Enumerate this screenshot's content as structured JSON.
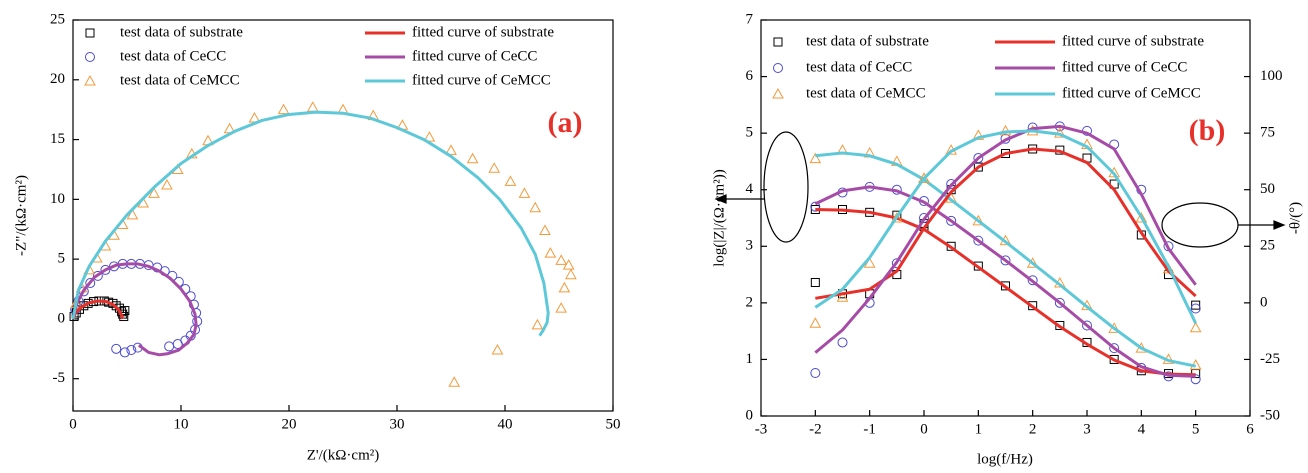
{
  "chart_data": [
    {
      "type": "scatter",
      "annotation": "(a)",
      "x_label": "Z'/(kΩ·cm²)",
      "y_label": "-Z\"/(kΩ·cm²)",
      "xlim": [
        0,
        50
      ],
      "xticks": [
        0,
        10,
        20,
        30,
        40,
        50
      ],
      "ylim": [
        -7.7,
        25
      ],
      "yticks": [
        -5,
        0,
        5,
        10,
        15,
        20,
        25
      ],
      "series": [
        {
          "name": "test data of substrate",
          "color": "#000000",
          "marker": "square",
          "x": [
            0.1,
            0.3,
            0.6,
            1.0,
            1.4,
            1.9,
            2.4,
            2.9,
            3.3,
            3.7,
            4.0,
            4.3,
            4.5,
            4.6,
            4.7,
            4.8
          ],
          "values": [
            0.2,
            0.5,
            0.8,
            1.1,
            1.3,
            1.45,
            1.5,
            1.5,
            1.4,
            1.3,
            1.1,
            0.9,
            0.6,
            0.4,
            0.2,
            0.7
          ]
        },
        {
          "name": "test data of CeCC",
          "color": "#4b4bd1",
          "marker": "circle",
          "x": [
            0.2,
            0.5,
            1,
            1.6,
            2.3,
            3,
            3.8,
            4.6,
            5.4,
            6.2,
            7,
            7.8,
            8.5,
            9.2,
            9.8,
            10.4,
            10.9,
            11.2,
            11.4,
            11.5,
            11.3,
            10.9,
            10.4,
            9.7,
            8.9,
            6.0,
            5.4,
            4.8,
            4.0
          ],
          "values": [
            0.8,
            1.5,
            2.3,
            3,
            3.6,
            4.1,
            4.4,
            4.6,
            4.6,
            4.6,
            4.5,
            4.3,
            4.0,
            3.6,
            3.1,
            2.5,
            1.9,
            1.2,
            0.5,
            -0.2,
            -0.9,
            -1.4,
            -1.8,
            -2.1,
            -2.3,
            -2.4,
            -2.6,
            -2.8,
            -2.5
          ]
        },
        {
          "name": "test data of CeMCC",
          "color": "#f39a3c",
          "marker": "triangle",
          "x": [
            0.3,
            0.8,
            1.5,
            2.2,
            3,
            3.8,
            4.6,
            5.5,
            6.5,
            7.5,
            8.7,
            9.7,
            11,
            12.5,
            14.5,
            16.8,
            19.5,
            22.2,
            25,
            27.8,
            30.5,
            33,
            35,
            37,
            39,
            40.5,
            41.8,
            42.8,
            43.7,
            44.2,
            45.2,
            45.9,
            46.1,
            45.5,
            45.2,
            43,
            39.3,
            35.3
          ],
          "values": [
            1.3,
            2.6,
            4.1,
            5.1,
            6.1,
            7.0,
            7.9,
            8.7,
            9.7,
            10.5,
            11.2,
            12.5,
            13.8,
            14.9,
            15.9,
            16.8,
            17.5,
            17.7,
            17.5,
            17,
            16.2,
            15.2,
            14.1,
            13.4,
            12.6,
            11.5,
            10.5,
            9.3,
            7.4,
            5.5,
            4.9,
            4.5,
            3.7,
            2.6,
            0.9,
            -0.5,
            -2.6,
            -5.3
          ]
        },
        {
          "name": "fitted curve of substrate",
          "color": "#e8302a",
          "marker": "line",
          "x": [
            0,
            0.3,
            0.8,
            1.5,
            2.3,
            3.1,
            3.7,
            4.2,
            4.5,
            4.6
          ],
          "values": [
            0,
            0.6,
            1.0,
            1.35,
            1.5,
            1.45,
            1.2,
            0.8,
            0.3,
            0
          ]
        },
        {
          "name": "fitted curve of CeCC",
          "color": "#a64ca6",
          "marker": "line",
          "x": [
            0,
            0.3,
            1,
            2,
            3,
            4,
            5,
            6,
            7,
            8,
            9,
            10,
            10.8,
            11.3,
            11.4,
            11.2,
            10.6,
            9.8,
            8.8,
            8,
            7,
            6.4,
            6.1
          ],
          "values": [
            0,
            1.2,
            2.4,
            3.5,
            4.1,
            4.5,
            4.6,
            4.6,
            4.4,
            4.0,
            3.4,
            2.5,
            1.5,
            0.4,
            -0.5,
            -1.3,
            -2.0,
            -2.6,
            -2.9,
            -3.0,
            -2.8,
            -2.4,
            -2.2
          ]
        },
        {
          "name": "fitted curve of CeMCC",
          "color": "#5cc8d8",
          "marker": "line",
          "x": [
            0,
            0.5,
            1.5,
            3,
            5,
            7.5,
            10,
            12.5,
            15,
            17.5,
            20,
            22.5,
            25,
            27.5,
            30,
            32.5,
            35,
            37.5,
            39.5,
            41.5,
            42.8,
            43.6,
            44,
            43.9,
            43.5,
            43.2
          ],
          "values": [
            0,
            2.4,
            4.4,
            6.5,
            8.7,
            11,
            13,
            14.5,
            15.7,
            16.6,
            17.1,
            17.3,
            17.2,
            16.8,
            16.0,
            15.0,
            13.6,
            11.8,
            10,
            7.6,
            5.4,
            3,
            0.5,
            -0.3,
            -1.0,
            -1.4
          ]
        }
      ]
    },
    {
      "type": "scatter",
      "annotation": "(b)",
      "x_label": "log(f/Hz)",
      "y_label": "log(|Z|/(Ω·cm²))",
      "y2_label": "-θ/(°)",
      "xlim": [
        -3,
        6
      ],
      "xticks": [
        -3,
        -2,
        -1,
        0,
        1,
        2,
        3,
        4,
        5,
        6
      ],
      "ylim": [
        0,
        7
      ],
      "yticks": [
        0,
        1,
        2,
        3,
        4,
        5,
        6,
        7
      ],
      "y2lim": [
        -50,
        125
      ],
      "y2ticks": [
        -50,
        -25,
        0,
        25,
        50,
        75,
        100
      ],
      "x": [
        -2,
        -1.5,
        -1,
        -0.5,
        0,
        0.5,
        1,
        1.5,
        2,
        2.5,
        3,
        3.5,
        4,
        4.5,
        5
      ],
      "series": [
        {
          "name": "test data of substrate",
          "color": "#000000",
          "marker": "square",
          "values": [
            3.65,
            3.65,
            3.6,
            3.55,
            3.35,
            3.0,
            2.65,
            2.3,
            1.95,
            1.6,
            1.3,
            1.0,
            0.8,
            0.75,
            0.75
          ]
        },
        {
          "name": "test data of CeCC",
          "color": "#4b4bd1",
          "marker": "circle",
          "values": [
            3.7,
            3.95,
            4.05,
            4.0,
            3.8,
            3.45,
            3.1,
            2.75,
            2.4,
            2.0,
            1.6,
            1.2,
            0.85,
            0.7,
            0.65
          ]
        },
        {
          "name": "test data of CeMCC",
          "color": "#f39a3c",
          "marker": "triangle",
          "values": [
            4.55,
            4.7,
            4.65,
            4.5,
            4.2,
            3.85,
            3.45,
            3.1,
            2.7,
            2.35,
            1.95,
            1.55,
            1.2,
            1.0,
            0.9
          ]
        },
        {
          "name": "fitted curve of substrate",
          "color": "#e8302a",
          "marker": "line",
          "values": [
            3.65,
            3.64,
            3.6,
            3.5,
            3.3,
            2.98,
            2.63,
            2.28,
            1.93,
            1.58,
            1.27,
            0.99,
            0.8,
            0.74,
            0.73
          ]
        },
        {
          "name": "fitted curve of CeCC",
          "color": "#a64ca6",
          "marker": "line",
          "values": [
            3.75,
            3.98,
            4.05,
            3.98,
            3.78,
            3.45,
            3.1,
            2.75,
            2.38,
            2.0,
            1.6,
            1.2,
            0.87,
            0.72,
            0.7
          ]
        },
        {
          "name": "fitted curve of CeMCC",
          "color": "#5cc8d8",
          "marker": "line",
          "values": [
            4.6,
            4.65,
            4.6,
            4.45,
            4.18,
            3.82,
            3.45,
            3.08,
            2.7,
            2.32,
            1.93,
            1.55,
            1.2,
            0.98,
            0.88
          ]
        },
        {
          "color": "#000000",
          "marker": "square",
          "axis": "y2",
          "values": [
            9,
            4,
            4,
            12.5,
            35,
            50,
            60,
            66,
            68,
            67.5,
            64,
            52.5,
            30,
            12.5,
            -1
          ]
        },
        {
          "color": "#4b4bd1",
          "marker": "circle",
          "axis": "y2",
          "values": [
            -31,
            -17.5,
            0,
            17.5,
            37.5,
            52.5,
            64,
            72.5,
            77.5,
            78,
            76,
            70,
            50,
            25,
            -2.5
          ]
        },
        {
          "color": "#f39a3c",
          "marker": "triangle",
          "axis": "y2",
          "values": [
            -9,
            2.5,
            17.5,
            37.5,
            55,
            67.5,
            74,
            76,
            76,
            75,
            70,
            57.5,
            37.5,
            15,
            -11
          ]
        },
        {
          "color": "#e8302a",
          "marker": "line",
          "axis": "y2",
          "values": [
            2,
            4,
            6,
            14,
            33,
            49,
            60,
            66,
            68,
            67,
            62,
            50,
            31,
            14,
            3
          ]
        },
        {
          "color": "#a64ca6",
          "marker": "line",
          "axis": "y2",
          "values": [
            -22,
            -12,
            2,
            18,
            37,
            52,
            64,
            72,
            77,
            78,
            75,
            68,
            48,
            24,
            8
          ]
        },
        {
          "color": "#5cc8d8",
          "marker": "line",
          "axis": "y2",
          "values": [
            -2,
            6,
            20,
            38,
            55,
            67,
            73,
            75.5,
            76,
            74.5,
            69,
            57,
            38,
            16,
            -9
          ]
        }
      ]
    }
  ]
}
